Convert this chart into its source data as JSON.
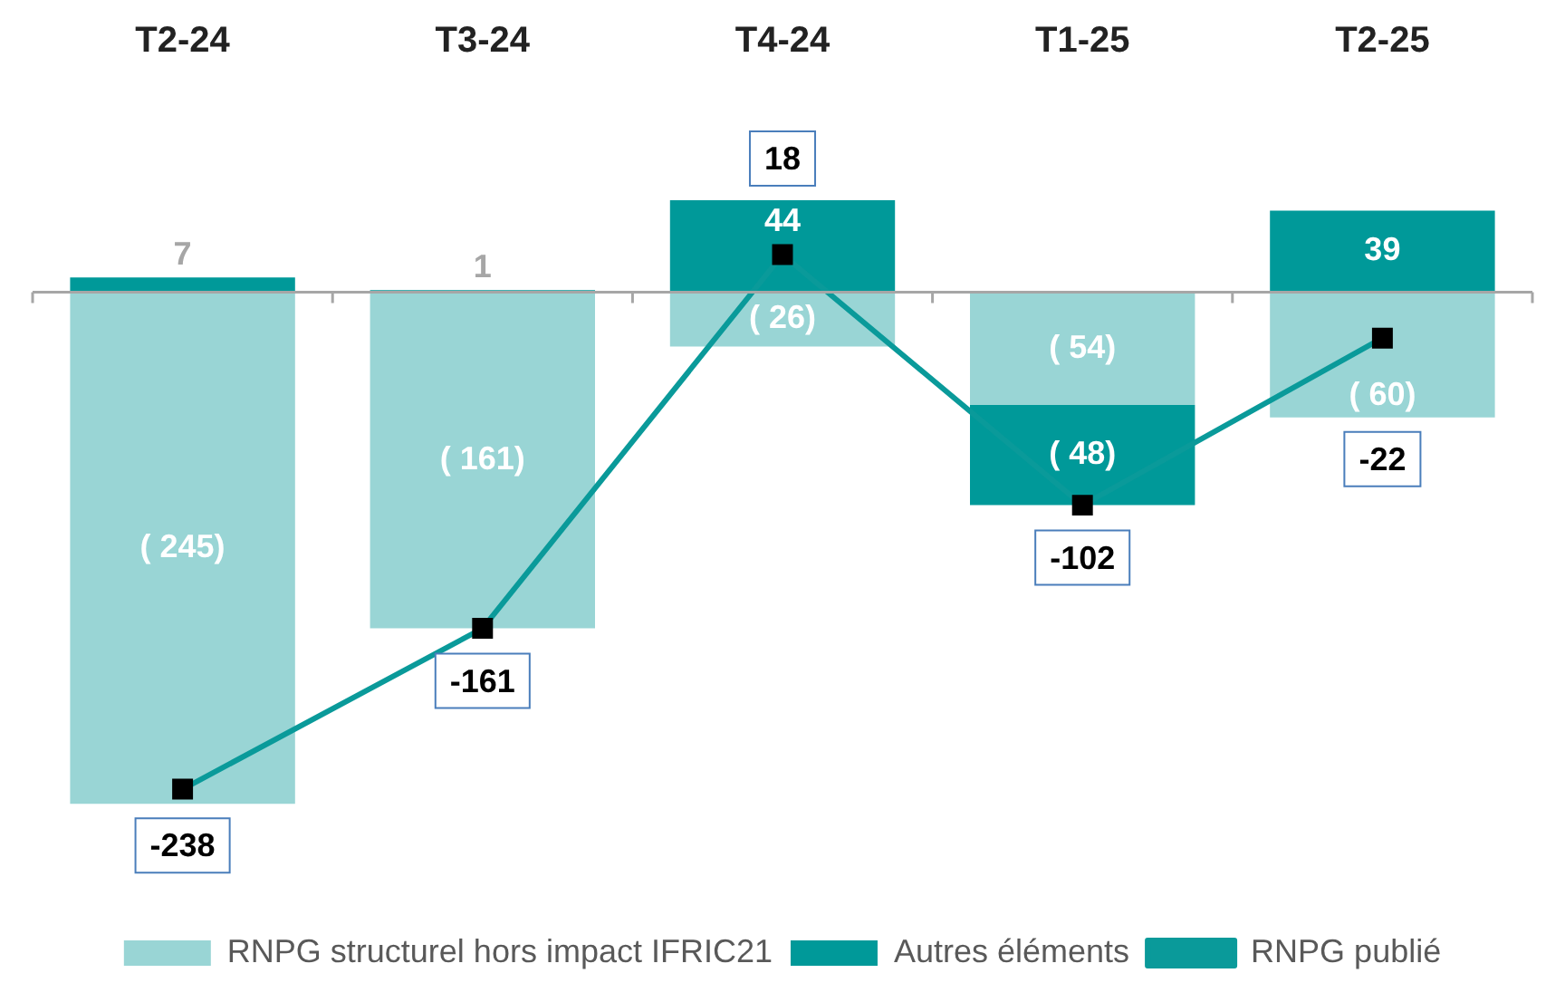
{
  "chart_data": {
    "type": "bar",
    "stacked": true,
    "categories": [
      "T2-24",
      "T3-24",
      "T4-24",
      "T1-25",
      "T2-25"
    ],
    "series": [
      {
        "name": "RNPG structurel hors impact IFRIC21",
        "color": "#99d5d5",
        "values": [
          -245,
          -161,
          -26,
          -54,
          -60
        ],
        "value_labels": [
          "( 245)",
          "( 161)",
          "( 26)",
          "( 54)",
          "( 60)"
        ]
      },
      {
        "name": "Autres éléments",
        "color": "#009999",
        "values": [
          7,
          1,
          44,
          -48,
          39
        ],
        "value_labels": [
          "7",
          "1",
          "44",
          "( 48)",
          "39"
        ]
      },
      {
        "name": "RNPG publié",
        "type": "line",
        "color": "#0a9a9a",
        "marker": "square",
        "values": [
          -238,
          -161,
          18,
          -102,
          -22
        ],
        "value_labels": [
          "-238",
          "-161",
          "18",
          "-102",
          "-22"
        ]
      }
    ],
    "legend": "bottom",
    "grid": false,
    "tick_labels": "x"
  }
}
